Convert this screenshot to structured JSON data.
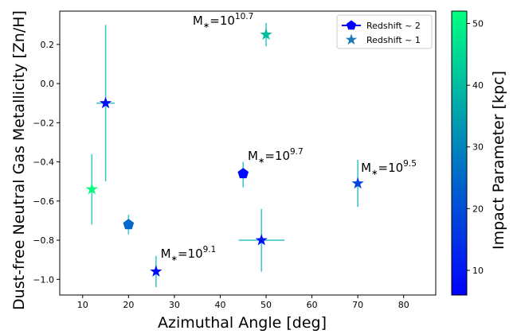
{
  "chart_data": {
    "type": "scatter",
    "xlabel": "Azimuthal Angle [deg]",
    "ylabel": "Dust-free Neutral Gas Metallicity  [Zn/H]",
    "xlim": [
      5,
      87
    ],
    "ylim": [
      -1.08,
      0.37
    ],
    "xticks": [
      10,
      20,
      30,
      40,
      50,
      60,
      70,
      80
    ],
    "yticks": [
      0.2,
      0.0,
      -0.2,
      -0.4,
      -0.6,
      -0.8,
      -1.0
    ],
    "xtick_labels": [
      "10",
      "20",
      "30",
      "40",
      "50",
      "60",
      "70",
      "80"
    ],
    "ytick_labels": [
      "0.2",
      "0.0",
      "−0.2",
      "−0.4",
      "−0.6",
      "−0.8",
      "−1.0"
    ],
    "grid": false,
    "errorbar_color": "#40c8c8",
    "colorbar": {
      "label": "Impact Parameter [kpc]",
      "range": [
        6,
        52
      ],
      "ticks": [
        10,
        20,
        30,
        40,
        50
      ],
      "tick_labels": [
        "10",
        "20",
        "30",
        "40",
        "50"
      ],
      "colormap": "winter",
      "color_low": "#0000ff",
      "color_high": "#00ff80"
    },
    "legend": {
      "placement": "top-right",
      "entries": [
        {
          "label": "Redshift ~ 2",
          "marker": "pentagon",
          "color": "#0000ff"
        },
        {
          "label": "Redshift ~ 1",
          "marker": "star",
          "color": "#1f77b4"
        }
      ]
    },
    "series": [
      {
        "marker": "pentagon",
        "points": [
          {
            "x": 45,
            "y": -0.46,
            "xerr": 0,
            "yerr_low": 0.07,
            "yerr_high": 0.06,
            "impact": 8
          },
          {
            "x": 20,
            "y": -0.72,
            "xerr": 0,
            "yerr_low": 0.05,
            "yerr_high": 0.05,
            "impact": 25
          }
        ]
      },
      {
        "marker": "star",
        "points": [
          {
            "x": 15,
            "y": -0.1,
            "xerr": 2,
            "yerr_low": 0.4,
            "yerr_high": 0.4,
            "impact": 8
          },
          {
            "x": 12,
            "y": -0.54,
            "xerr": 0,
            "yerr_low": 0.18,
            "yerr_high": 0.18,
            "impact": 52
          },
          {
            "x": 26,
            "y": -0.96,
            "xerr": 0,
            "yerr_low": 0.08,
            "yerr_high": 0.08,
            "impact": 8
          },
          {
            "x": 49,
            "y": -0.8,
            "xerr": 5,
            "yerr_low": 0.16,
            "yerr_high": 0.16,
            "impact": 9
          },
          {
            "x": 50,
            "y": 0.25,
            "xerr": 0,
            "yerr_low": 0.06,
            "yerr_high": 0.06,
            "impact": 40
          },
          {
            "x": 70,
            "y": -0.51,
            "xerr": 0,
            "yerr_low": 0.12,
            "yerr_high": 0.12,
            "impact": 18
          }
        ]
      }
    ],
    "annotations": [
      {
        "x": 34,
        "y": 0.3,
        "base": "M",
        "sub": "∗",
        "eq": "=10",
        "exp": "10.7"
      },
      {
        "x": 46,
        "y": -0.39,
        "base": "M",
        "sub": "∗",
        "eq": "=10",
        "exp": "9.7"
      },
      {
        "x": 70.7,
        "y": -0.45,
        "base": "M",
        "sub": "∗",
        "eq": "=10",
        "exp": "9.5"
      },
      {
        "x": 27,
        "y": -0.89,
        "base": "M",
        "sub": "∗",
        "eq": "=10",
        "exp": "9.1"
      }
    ]
  }
}
